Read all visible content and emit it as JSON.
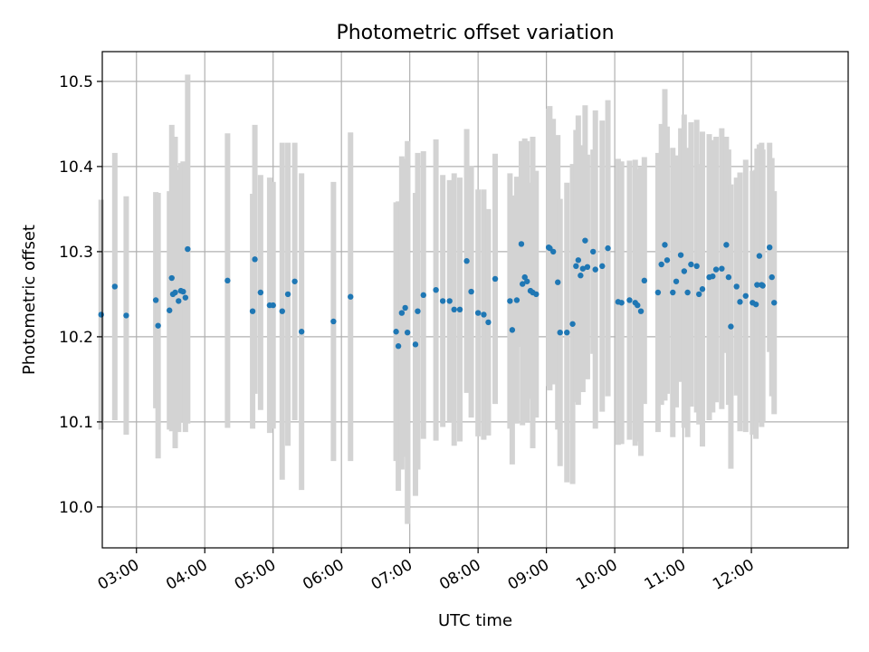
{
  "chart_data": {
    "type": "scatter",
    "title": "Photometric offset variation",
    "xlabel": "UTC time",
    "ylabel": "Photometric offset",
    "xlim": [
      "02:30",
      "13:25"
    ],
    "ylim": [
      9.952,
      10.535
    ],
    "grid": true,
    "x_ticks": [
      "03:00",
      "04:00",
      "05:00",
      "06:00",
      "07:00",
      "08:00",
      "09:00",
      "10:00",
      "11:00",
      "12:00"
    ],
    "y_ticks": [
      10.0,
      10.1,
      10.2,
      10.3,
      10.4,
      10.5
    ],
    "colors": {
      "point": "#1f77b4",
      "errorbar": "#d3d3d3",
      "grid": "#b0b0b0"
    },
    "series": [
      {
        "x": [
          "02:29",
          "02:41",
          "02:51",
          "03:17",
          "03:19",
          "03:29",
          "03:31",
          "03:32",
          "03:34",
          "03:37",
          "03:39",
          "03:41",
          "03:43",
          "03:45",
          "04:20",
          "04:42",
          "04:44",
          "04:49",
          "04:57",
          "05:00",
          "05:08",
          "05:13",
          "05:19",
          "05:25",
          "05:53",
          "06:08",
          "06:48",
          "06:50",
          "06:53",
          "06:56",
          "06:58",
          "07:05",
          "07:07",
          "07:12",
          "07:23",
          "07:29",
          "07:35",
          "07:39",
          "07:44",
          "07:50",
          "07:54",
          "08:00",
          "08:05",
          "08:09",
          "08:15",
          "08:28",
          "08:30",
          "08:34",
          "08:38",
          "08:39",
          "08:41",
          "08:43",
          "08:46",
          "08:48",
          "08:51",
          "09:02",
          "09:03",
          "09:06",
          "09:10",
          "09:12",
          "09:18",
          "09:23",
          "09:26",
          "09:28",
          "09:30",
          "09:32",
          "09:34",
          "09:36",
          "09:41",
          "09:43",
          "09:49",
          "09:54",
          "10:03",
          "10:06",
          "10:13",
          "10:18",
          "10:20",
          "10:23",
          "10:26",
          "10:38",
          "10:41",
          "10:44",
          "10:46",
          "10:51",
          "10:54",
          "10:58",
          "11:01",
          "11:04",
          "11:07",
          "11:12",
          "11:14",
          "11:17",
          "11:23",
          "11:26",
          "11:29",
          "11:34",
          "11:38",
          "11:40",
          "11:42",
          "11:47",
          "11:50",
          "11:55",
          "12:01",
          "12:04",
          "12:05",
          "12:07",
          "12:09",
          "12:10",
          "12:16",
          "12:18",
          "12:20"
        ],
        "y": [
          10.226,
          10.259,
          10.225,
          10.243,
          10.213,
          10.231,
          10.269,
          10.25,
          10.252,
          10.242,
          10.254,
          10.253,
          10.246,
          10.303,
          10.266,
          10.23,
          10.291,
          10.252,
          10.237,
          10.237,
          10.23,
          10.25,
          10.265,
          10.206,
          10.218,
          10.247,
          10.206,
          10.189,
          10.228,
          10.234,
          10.205,
          10.191,
          10.23,
          10.249,
          10.255,
          10.242,
          10.242,
          10.232,
          10.232,
          10.289,
          10.253,
          10.228,
          10.226,
          10.217,
          10.268,
          10.242,
          10.208,
          10.243,
          10.309,
          10.262,
          10.27,
          10.265,
          10.254,
          10.252,
          10.25,
          10.305,
          10.304,
          10.3,
          10.264,
          10.205,
          10.205,
          10.215,
          10.283,
          10.29,
          10.272,
          10.28,
          10.313,
          10.282,
          10.3,
          10.279,
          10.283,
          10.304,
          10.241,
          10.24,
          10.243,
          10.24,
          10.237,
          10.23,
          10.266,
          10.252,
          10.285,
          10.308,
          10.29,
          10.252,
          10.265,
          10.296,
          10.277,
          10.252,
          10.285,
          10.283,
          10.25,
          10.256,
          10.27,
          10.271,
          10.279,
          10.28,
          10.308,
          10.27,
          10.212,
          10.259,
          10.241,
          10.248,
          10.24,
          10.238,
          10.261,
          10.295,
          10.261,
          10.26,
          10.305,
          10.27,
          10.24
        ],
        "yerr": [
          0.135,
          0.157,
          0.14,
          0.127,
          0.156,
          0.14,
          0.18,
          0.143,
          0.183,
          0.154,
          0.15,
          0.153,
          0.158,
          0.205,
          0.173,
          0.138,
          0.158,
          0.138,
          0.15,
          0.145,
          0.198,
          0.178,
          0.163,
          0.186,
          0.164,
          0.193,
          0.152,
          0.17,
          0.184,
          0.175,
          0.225,
          0.178,
          0.186,
          0.169,
          0.177,
          0.148,
          0.142,
          0.16,
          0.155,
          0.155,
          0.148,
          0.145,
          0.147,
          0.133,
          0.147,
          0.15,
          0.158,
          0.145,
          0.121,
          0.166,
          0.163,
          0.165,
          0.127,
          0.183,
          0.145,
          0.163,
          0.167,
          0.156,
          0.173,
          0.157,
          0.176,
          0.188,
          0.16,
          0.17,
          0.137,
          0.145,
          0.159,
          0.132,
          0.12,
          0.187,
          0.171,
          0.174,
          0.168,
          0.166,
          0.164,
          0.168,
          0.16,
          0.17,
          0.145,
          0.164,
          0.165,
          0.183,
          0.157,
          0.17,
          0.148,
          0.149,
          0.184,
          0.17,
          0.167,
          0.172,
          0.153,
          0.185,
          0.168,
          0.16,
          0.156,
          0.165,
          0.127,
          0.15,
          0.167,
          0.128,
          0.152,
          0.16,
          0.155,
          0.158,
          0.16,
          0.131,
          0.167,
          0.16,
          0.123,
          0.14,
          0.131
        ]
      }
    ]
  }
}
